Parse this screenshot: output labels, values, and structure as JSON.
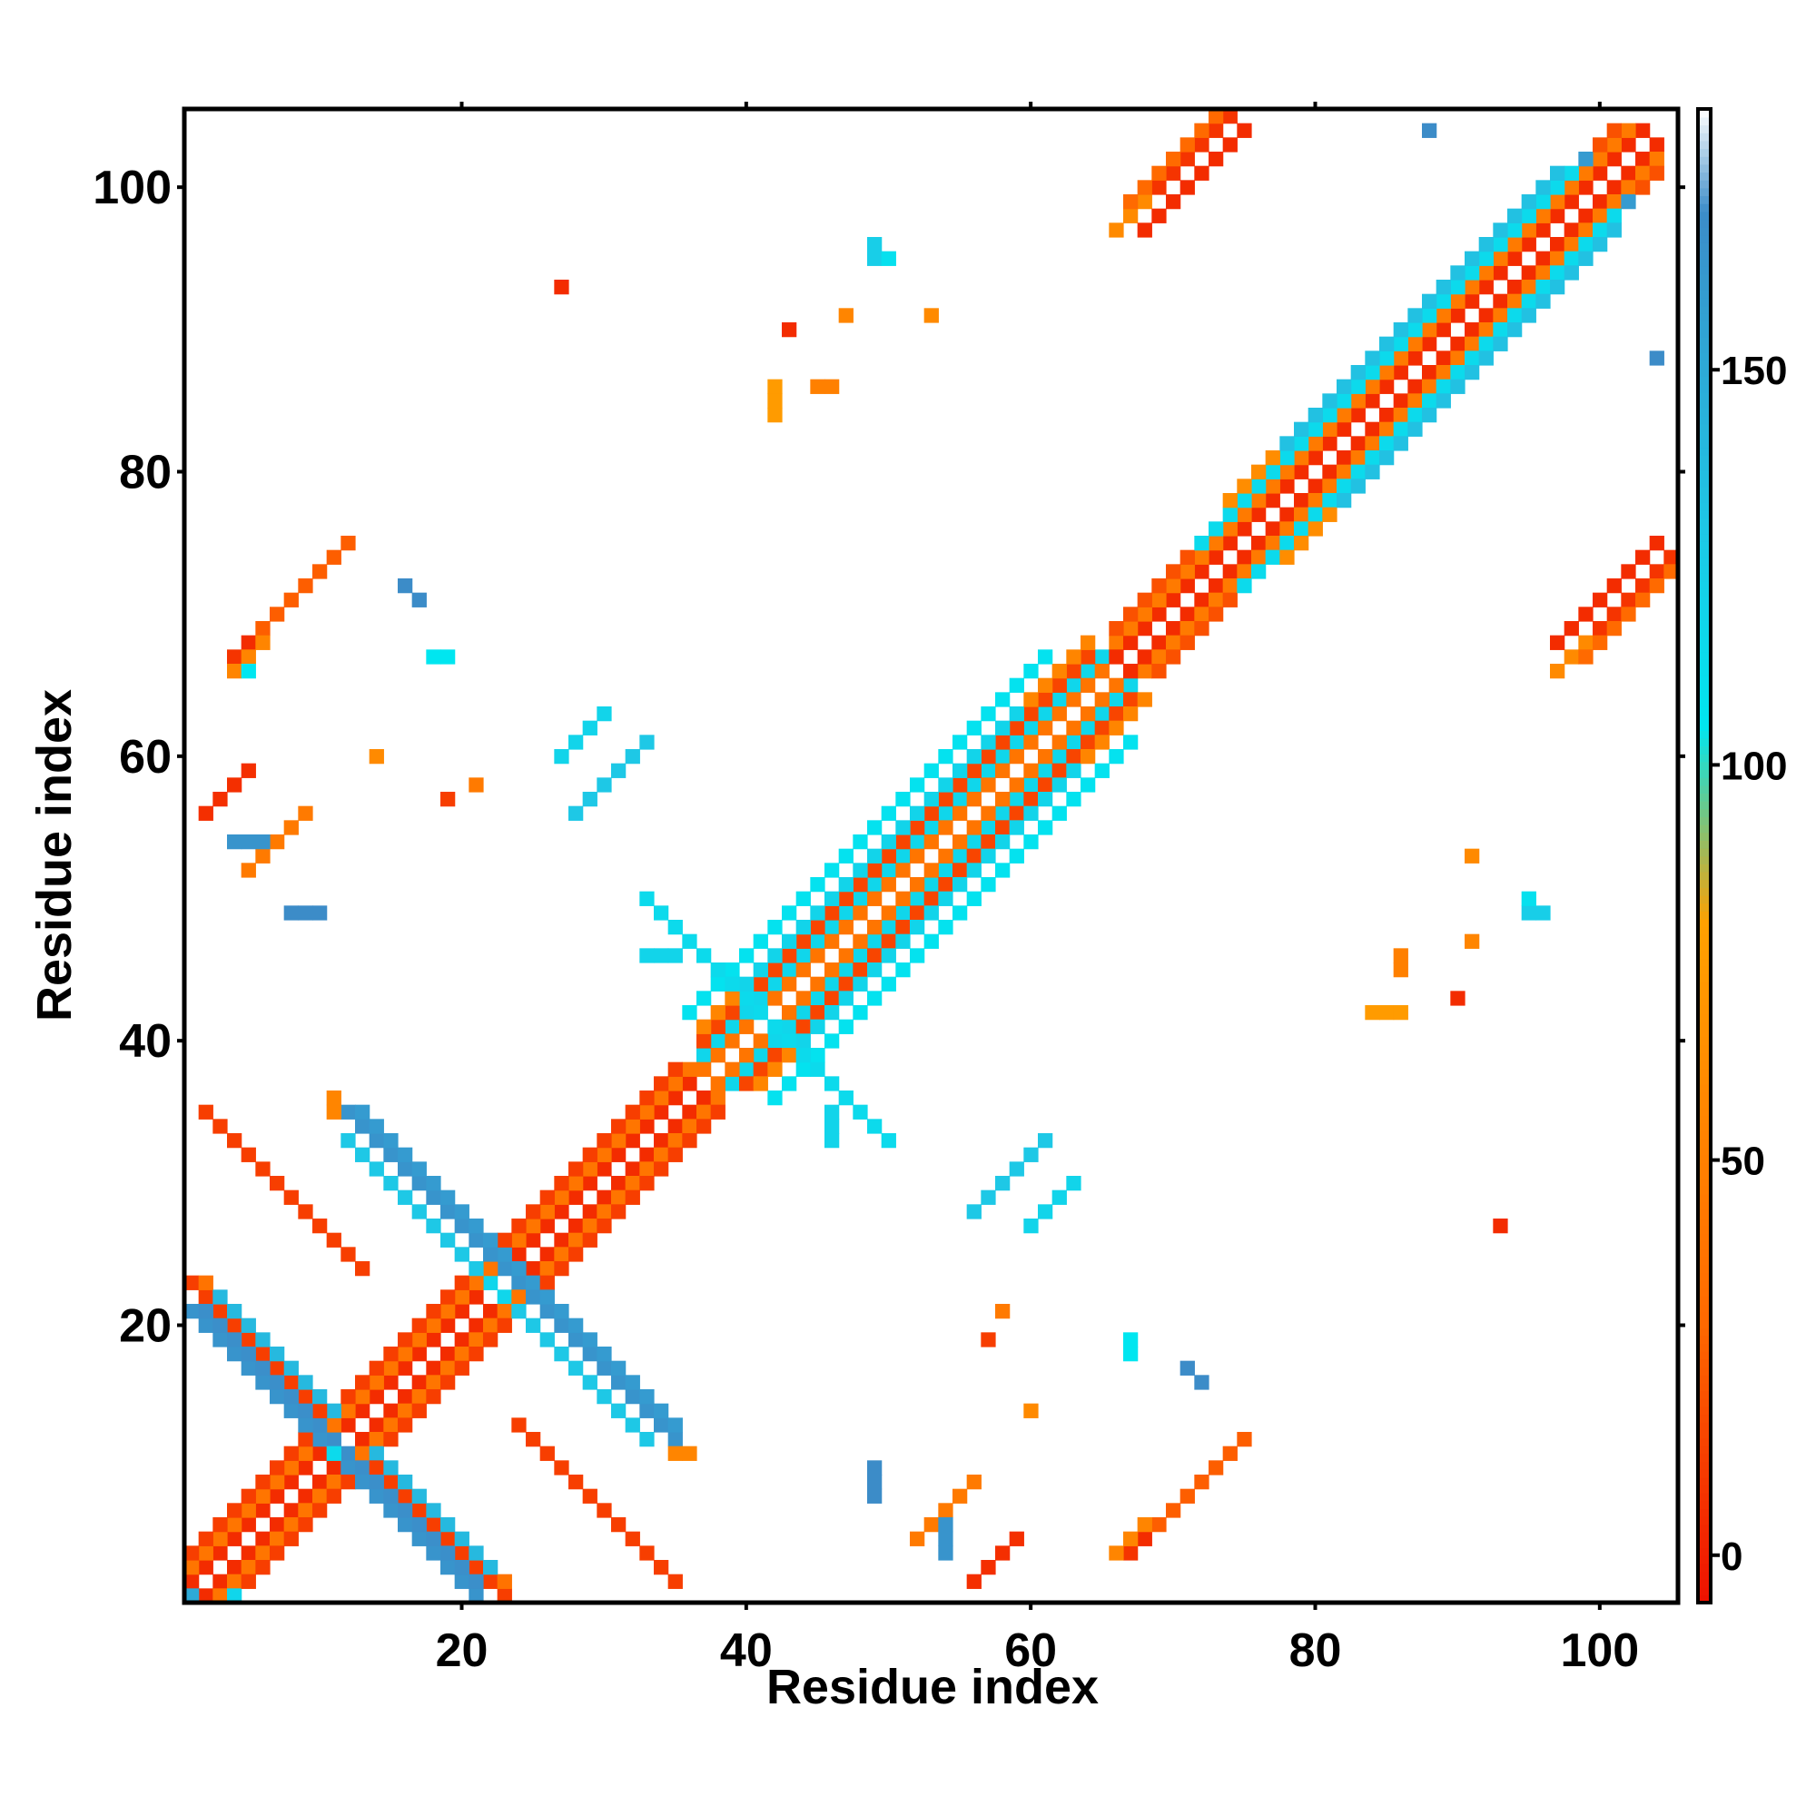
{
  "chart_data": {
    "type": "heatmap",
    "title": "",
    "xlabel": "Residue index",
    "ylabel": "Residue index",
    "xlim": [
      0.5,
      105.5
    ],
    "ylim": [
      0.5,
      105.5
    ],
    "xticks": [
      20,
      40,
      60,
      80,
      100
    ],
    "yticks": [
      20,
      40,
      60,
      80,
      100
    ],
    "colorbar": {
      "range": [
        -6,
        183
      ],
      "ticks": [
        0,
        50,
        100,
        150
      ],
      "stops": [
        {
          "value": -6,
          "color": "#ee1100"
        },
        {
          "value": 30,
          "color": "#ff6a00"
        },
        {
          "value": 80,
          "color": "#ffa000"
        },
        {
          "value": 105,
          "color": "#00e6f0"
        },
        {
          "value": 130,
          "color": "#1ec8e6"
        },
        {
          "value": 170,
          "color": "#3c8cc8"
        },
        {
          "value": 183,
          "color": "#ffffff"
        }
      ]
    },
    "grid": false,
    "legend": "colorbar-right",
    "segments": [
      {
        "i0": 1,
        "j0": 2,
        "n": 36,
        "di": 1,
        "dj": 1,
        "v": 5
      },
      {
        "i0": 2,
        "j0": 1,
        "n": 36,
        "di": 1,
        "dj": 1,
        "v": 5
      },
      {
        "i0": 1,
        "j0": 3,
        "n": 36,
        "di": 1,
        "dj": 1,
        "v": 40
      },
      {
        "i0": 3,
        "j0": 1,
        "n": 36,
        "di": 1,
        "dj": 1,
        "v": 40
      },
      {
        "i0": 1,
        "j0": 4,
        "n": 35,
        "di": 1,
        "dj": 1,
        "v": 12
      },
      {
        "i0": 4,
        "j0": 1,
        "n": 35,
        "di": 1,
        "dj": 1,
        "v": 12
      },
      {
        "i0": 37,
        "j0": 39,
        "n": 30,
        "di": 1,
        "dj": 1,
        "v": 118
      },
      {
        "i0": 39,
        "j0": 37,
        "n": 30,
        "di": 1,
        "dj": 1,
        "v": 118
      },
      {
        "i0": 37,
        "j0": 38,
        "n": 30,
        "di": 1,
        "dj": 1,
        "v": 40
      },
      {
        "i0": 38,
        "j0": 37,
        "n": 30,
        "di": 1,
        "dj": 1,
        "v": 40
      },
      {
        "i0": 37,
        "j0": 40,
        "n": 28,
        "di": 1,
        "dj": 1,
        "v": 15
      },
      {
        "i0": 40,
        "j0": 37,
        "n": 28,
        "di": 1,
        "dj": 1,
        "v": 15
      },
      {
        "i0": 37,
        "j0": 41,
        "n": 28,
        "di": 1,
        "dj": 1,
        "v": 55
      },
      {
        "i0": 41,
        "j0": 37,
        "n": 28,
        "di": 1,
        "dj": 1,
        "v": 55
      },
      {
        "i0": 36,
        "j0": 42,
        "n": 26,
        "di": 1,
        "dj": 1,
        "v": 108
      },
      {
        "i0": 42,
        "j0": 36,
        "n": 26,
        "di": 1,
        "dj": 1,
        "v": 108
      },
      {
        "i0": 40,
        "j0": 44,
        "n": 20,
        "di": 1,
        "dj": 1,
        "v": 120
      },
      {
        "i0": 44,
        "j0": 40,
        "n": 20,
        "di": 1,
        "dj": 1,
        "v": 120
      },
      {
        "i0": 66,
        "j0": 67,
        "n": 38,
        "di": 1,
        "dj": 1,
        "v": 5
      },
      {
        "i0": 67,
        "j0": 66,
        "n": 38,
        "di": 1,
        "dj": 1,
        "v": 5
      },
      {
        "i0": 66,
        "j0": 68,
        "n": 37,
        "di": 1,
        "dj": 1,
        "v": 45
      },
      {
        "i0": 68,
        "j0": 66,
        "n": 37,
        "di": 1,
        "dj": 1,
        "v": 45
      },
      {
        "i0": 66,
        "j0": 69,
        "n": 36,
        "di": 1,
        "dj": 1,
        "v": 20
      },
      {
        "i0": 69,
        "j0": 66,
        "n": 36,
        "di": 1,
        "dj": 1,
        "v": 20
      },
      {
        "i0": 72,
        "j0": 75,
        "n": 28,
        "di": 1,
        "dj": 1,
        "v": 115
      },
      {
        "i0": 75,
        "j0": 72,
        "n": 28,
        "di": 1,
        "dj": 1,
        "v": 115
      },
      {
        "i0": 74,
        "j0": 78,
        "n": 24,
        "di": 1,
        "dj": 1,
        "v": 62
      },
      {
        "i0": 78,
        "j0": 74,
        "n": 24,
        "di": 1,
        "dj": 1,
        "v": 62
      },
      {
        "i0": 78,
        "j0": 82,
        "n": 20,
        "di": 1,
        "dj": 1,
        "v": 135
      },
      {
        "i0": 82,
        "j0": 78,
        "n": 20,
        "di": 1,
        "dj": 1,
        "v": 135
      },
      {
        "i0": 1,
        "j0": 23,
        "n": 10,
        "di": 1,
        "dj": -1,
        "v": 12
      },
      {
        "i0": 23,
        "j0": 1,
        "n": 10,
        "di": -1,
        "dj": 1,
        "v": 12
      },
      {
        "i0": 2,
        "j0": 23,
        "n": 10,
        "di": 1,
        "dj": -1,
        "v": 38
      },
      {
        "i0": 23,
        "j0": 2,
        "n": 10,
        "di": -1,
        "dj": 1,
        "v": 38
      },
      {
        "i0": 1,
        "j0": 21,
        "n": 11,
        "di": 1,
        "dj": -1,
        "v": 165
      },
      {
        "i0": 21,
        "j0": 1,
        "n": 11,
        "di": -1,
        "dj": 1,
        "v": 165
      },
      {
        "i0": 2,
        "j0": 21,
        "n": 10,
        "di": 1,
        "dj": -1,
        "v": 168
      },
      {
        "i0": 21,
        "j0": 2,
        "n": 10,
        "di": -1,
        "dj": 1,
        "v": 168
      },
      {
        "i0": 3,
        "j0": 22,
        "n": 9,
        "di": 1,
        "dj": -1,
        "v": 140
      },
      {
        "i0": 22,
        "j0": 3,
        "n": 9,
        "di": -1,
        "dj": 1,
        "v": 140
      },
      {
        "i0": 2,
        "j0": 35,
        "n": 12,
        "di": 1,
        "dj": -1,
        "v": 12
      },
      {
        "i0": 35,
        "j0": 2,
        "n": 12,
        "di": -1,
        "dj": 1,
        "v": 12
      },
      {
        "i0": 12,
        "j0": 35,
        "n": 12,
        "di": 1,
        "dj": -1,
        "v": 165
      },
      {
        "i0": 35,
        "j0": 12,
        "n": 12,
        "di": -1,
        "dj": 1,
        "v": 165
      },
      {
        "i0": 13,
        "j0": 35,
        "n": 12,
        "di": 1,
        "dj": -1,
        "v": 160
      },
      {
        "i0": 35,
        "j0": 13,
        "n": 12,
        "di": -1,
        "dj": 1,
        "v": 160
      },
      {
        "i0": 12,
        "j0": 33,
        "n": 10,
        "di": 1,
        "dj": -1,
        "v": 130
      },
      {
        "i0": 33,
        "j0": 12,
        "n": 10,
        "di": -1,
        "dj": 1,
        "v": 130
      },
      {
        "i0": 11,
        "j0": 36,
        "n": 2,
        "di": 0,
        "dj": -1,
        "v": 55
      },
      {
        "i0": 36,
        "j0": 11,
        "n": 2,
        "di": -1,
        "dj": 0,
        "v": 55
      },
      {
        "i0": 36,
        "j0": 47,
        "n": 15,
        "di": 1,
        "dj": -1,
        "v": 115
      },
      {
        "i0": 47,
        "j0": 36,
        "n": 15,
        "di": -1,
        "dj": 1,
        "v": 115
      },
      {
        "i0": 4,
        "j0": 67,
        "n": 8,
        "di": 1,
        "dj": 1,
        "v": 8
      },
      {
        "i0": 67,
        "j0": 4,
        "n": 8,
        "di": 1,
        "dj": 1,
        "v": 8
      },
      {
        "i0": 5,
        "j0": 68,
        "n": 8,
        "di": 1,
        "dj": 1,
        "v": 5
      },
      {
        "i0": 68,
        "j0": 5,
        "n": 8,
        "di": 1,
        "dj": 1,
        "v": 5
      },
      {
        "i0": 6,
        "j0": 69,
        "n": 7,
        "di": 1,
        "dj": 1,
        "v": 25
      },
      {
        "i0": 69,
        "j0": 6,
        "n": 7,
        "di": 1,
        "dj": 1,
        "v": 25
      },
      {
        "i0": 4,
        "j0": 66,
        "n": 3,
        "di": 1,
        "dj": 1,
        "v": 55
      },
      {
        "i0": 66,
        "j0": 4,
        "n": 3,
        "di": 1,
        "dj": 1,
        "v": 55
      },
      {
        "i0": 67,
        "j0": 98,
        "n": 8,
        "di": 1,
        "dj": 1,
        "v": 8
      },
      {
        "i0": 98,
        "j0": 67,
        "n": 8,
        "di": 1,
        "dj": 1,
        "v": 8
      },
      {
        "i0": 68,
        "j0": 97,
        "n": 8,
        "di": 1,
        "dj": 1,
        "v": 5
      },
      {
        "i0": 97,
        "j0": 68,
        "n": 8,
        "di": 1,
        "dj": 1,
        "v": 5
      },
      {
        "i0": 67,
        "j0": 99,
        "n": 7,
        "di": 1,
        "dj": 1,
        "v": 30
      },
      {
        "i0": 99,
        "j0": 67,
        "n": 7,
        "di": 1,
        "dj": 1,
        "v": 30
      },
      {
        "i0": 66,
        "j0": 97,
        "n": 3,
        "di": 1,
        "dj": 1,
        "v": 60
      },
      {
        "i0": 97,
        "j0": 66,
        "n": 3,
        "di": 1,
        "dj": 1,
        "v": 60
      },
      {
        "i0": 56,
        "j0": 2,
        "n": 4,
        "di": 1,
        "dj": 1,
        "v": 6
      },
      {
        "i0": 2,
        "j0": 56,
        "n": 4,
        "di": 1,
        "dj": 1,
        "v": 6
      },
      {
        "i0": 52,
        "j0": 5,
        "n": 5,
        "di": 1,
        "dj": 1,
        "v": 45
      },
      {
        "i0": 5,
        "j0": 52,
        "n": 5,
        "di": 1,
        "dj": 1,
        "v": 45
      },
      {
        "i0": 28,
        "j0": 56,
        "n": 6,
        "di": 1,
        "dj": 1,
        "v": 130
      },
      {
        "i0": 56,
        "j0": 28,
        "n": 6,
        "di": 1,
        "dj": 1,
        "v": 130
      },
      {
        "i0": 27,
        "j0": 60,
        "n": 4,
        "di": 1,
        "dj": 1,
        "v": 120
      },
      {
        "i0": 60,
        "j0": 27,
        "n": 4,
        "di": 1,
        "dj": 1,
        "v": 120
      },
      {
        "i0": 4,
        "j0": 54,
        "n": 3,
        "di": 1,
        "dj": 0,
        "v": 165
      },
      {
        "i0": 54,
        "j0": 4,
        "n": 3,
        "di": 0,
        "dj": 1,
        "v": 165
      },
      {
        "i0": 8,
        "j0": 49,
        "n": 3,
        "di": 1,
        "dj": 0,
        "v": 170
      },
      {
        "i0": 49,
        "j0": 8,
        "n": 3,
        "di": 0,
        "dj": 1,
        "v": 170
      },
      {
        "i0": 16,
        "j0": 72,
        "n": 2,
        "di": 1,
        "dj": -1,
        "v": 170
      },
      {
        "i0": 72,
        "j0": 16,
        "n": 2,
        "di": -1,
        "dj": 1,
        "v": 170
      },
      {
        "i0": 18,
        "j0": 67,
        "n": 2,
        "di": 1,
        "dj": 0,
        "v": 105
      },
      {
        "i0": 67,
        "j0": 18,
        "n": 2,
        "di": 0,
        "dj": 1,
        "v": 105
      },
      {
        "i0": 33,
        "j0": 46,
        "n": 3,
        "di": 1,
        "dj": 0,
        "v": 120
      },
      {
        "i0": 46,
        "j0": 33,
        "n": 3,
        "di": 0,
        "dj": 1,
        "v": 120
      },
      {
        "i0": 42,
        "j0": 84,
        "n": 3,
        "di": 0,
        "dj": 1,
        "v": 75
      },
      {
        "i0": 84,
        "j0": 42,
        "n": 3,
        "di": 1,
        "dj": 0,
        "v": 75
      },
      {
        "i0": 45,
        "j0": 86,
        "n": 2,
        "di": 1,
        "dj": 0,
        "v": 50
      },
      {
        "i0": 86,
        "j0": 45,
        "n": 2,
        "di": 0,
        "dj": 1,
        "v": 50
      },
      {
        "i0": 49,
        "j0": 95,
        "n": 2,
        "di": 0,
        "dj": 1,
        "v": 125
      },
      {
        "i0": 95,
        "j0": 49,
        "n": 2,
        "di": 1,
        "dj": 0,
        "v": 125
      }
    ],
    "points": [
      {
        "i": 1,
        "j": 1,
        "v": 150
      },
      {
        "i": 4,
        "j": 1,
        "v": 118
      },
      {
        "i": 11,
        "j": 11,
        "v": 115
      },
      {
        "i": 22,
        "j": 23,
        "v": 118
      },
      {
        "i": 23,
        "j": 22,
        "v": 118
      },
      {
        "i": 43,
        "j": 90,
        "v": 5
      },
      {
        "i": 90,
        "j": 43,
        "v": 5
      },
      {
        "i": 47,
        "j": 91,
        "v": 55
      },
      {
        "i": 91,
        "j": 47,
        "v": 55
      },
      {
        "i": 50,
        "j": 95,
        "v": 110
      },
      {
        "i": 95,
        "j": 50,
        "v": 110
      },
      {
        "i": 53,
        "j": 91,
        "v": 60
      },
      {
        "i": 91,
        "j": 53,
        "v": 60
      },
      {
        "i": 5,
        "j": 66,
        "v": 105
      },
      {
        "i": 88,
        "j": 104,
        "v": 170
      },
      {
        "i": 104,
        "j": 88,
        "v": 170
      },
      {
        "i": 102,
        "j": 99,
        "v": 160
      },
      {
        "i": 99,
        "j": 102,
        "v": 160
      },
      {
        "i": 93,
        "j": 27,
        "v": 5
      },
      {
        "i": 27,
        "j": 93,
        "v": 5
      },
      {
        "i": 57,
        "j": 19,
        "v": 12
      },
      {
        "i": 19,
        "j": 57,
        "v": 12
      },
      {
        "i": 58,
        "j": 21,
        "v": 45
      },
      {
        "i": 21,
        "j": 58,
        "v": 45
      },
      {
        "i": 60,
        "j": 14,
        "v": 60
      },
      {
        "i": 14,
        "j": 60,
        "v": 60
      }
    ]
  }
}
